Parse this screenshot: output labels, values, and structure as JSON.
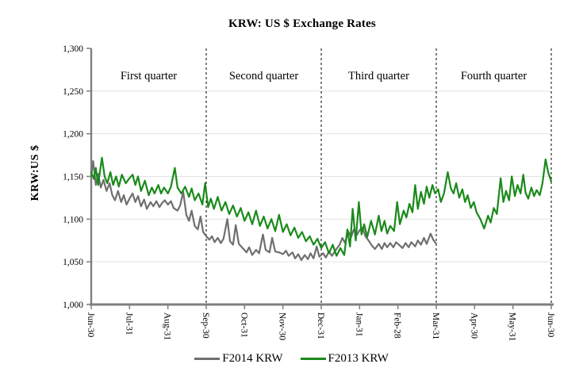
{
  "title": "KRW: US $ Exchange Rates",
  "y_axis_title": "KRW:US $",
  "legend": {
    "items": [
      {
        "label": "F2014 KRW",
        "color": "#6f6f6f"
      },
      {
        "label": "F2013 KRW",
        "color": "#1a8a1a"
      }
    ]
  },
  "colors": {
    "f2014_line": "#6f6f6f",
    "f2013_line": "#1a8a1a",
    "gridline": "#e2e2e2",
    "axis": "#7f7f7f",
    "separator": "#000000",
    "text": "#000000",
    "background": "#ffffff"
  },
  "chart_data": {
    "type": "line",
    "title": "KRW: US $ Exchange Rates",
    "ylabel": "KRW:US $",
    "xlabel": "",
    "ylim": [
      1000,
      1300
    ],
    "y_ticks": [
      1000,
      1050,
      1100,
      1150,
      1200,
      1250,
      1300
    ],
    "y_tick_labels": [
      "1,000",
      "1,050",
      "1,100",
      "1,150",
      "1,200",
      "1,250",
      "1,300"
    ],
    "y_gridlines": [
      1050,
      1100,
      1150,
      1200,
      1250
    ],
    "x_unit": "months after Jun-30 (fiscal year)",
    "x_range_months": [
      0,
      12
    ],
    "x_ticks_months": [
      0,
      1,
      2,
      3,
      4,
      5,
      6,
      7,
      8,
      9,
      10,
      11,
      12
    ],
    "x_tick_labels": [
      "Jun-30",
      "Jul-31",
      "Aug-31",
      "Sep-30",
      "Oct-31",
      "Nov-30",
      "Dec-31",
      "Jan-31",
      "Feb-28",
      "Mar-31",
      "Apr-30",
      "May-31",
      "Jun-30"
    ],
    "quarter_separators_months": [
      3,
      6,
      9,
      12
    ],
    "quarter_labels": [
      {
        "label": "First quarter",
        "center_month": 1.5
      },
      {
        "label": "Second quarter",
        "center_month": 4.5
      },
      {
        "label": "Third quarter",
        "center_month": 7.5
      },
      {
        "label": "Fourth quarter",
        "center_month": 10.5
      }
    ],
    "grid": "horizontal-light",
    "legend_position": "bottom",
    "series": [
      {
        "name": "F2014 KRW",
        "color": "#6f6f6f",
        "points": [
          [
            0,
            1150
          ],
          [
            0.05,
            1168
          ],
          [
            0.12,
            1140
          ],
          [
            0.18,
            1153
          ],
          [
            0.25,
            1137
          ],
          [
            0.32,
            1146
          ],
          [
            0.4,
            1133
          ],
          [
            0.48,
            1142
          ],
          [
            0.55,
            1128
          ],
          [
            0.62,
            1122
          ],
          [
            0.7,
            1133
          ],
          [
            0.78,
            1120
          ],
          [
            0.85,
            1128
          ],
          [
            0.92,
            1117
          ],
          [
            1.0,
            1124
          ],
          [
            1.08,
            1130
          ],
          [
            1.15,
            1120
          ],
          [
            1.22,
            1127
          ],
          [
            1.3,
            1115
          ],
          [
            1.38,
            1123
          ],
          [
            1.45,
            1112
          ],
          [
            1.55,
            1120
          ],
          [
            1.62,
            1115
          ],
          [
            1.7,
            1121
          ],
          [
            1.78,
            1114
          ],
          [
            1.85,
            1119
          ],
          [
            1.92,
            1122
          ],
          [
            2.0,
            1117
          ],
          [
            2.08,
            1121
          ],
          [
            2.15,
            1113
          ],
          [
            2.25,
            1110
          ],
          [
            2.32,
            1116
          ],
          [
            2.4,
            1132
          ],
          [
            2.48,
            1105
          ],
          [
            2.55,
            1098
          ],
          [
            2.62,
            1110
          ],
          [
            2.7,
            1092
          ],
          [
            2.78,
            1088
          ],
          [
            2.85,
            1103
          ],
          [
            2.92,
            1085
          ],
          [
            3.0,
            1080
          ],
          [
            3.08,
            1076
          ],
          [
            3.15,
            1080
          ],
          [
            3.22,
            1073
          ],
          [
            3.3,
            1078
          ],
          [
            3.38,
            1072
          ],
          [
            3.45,
            1077
          ],
          [
            3.55,
            1100
          ],
          [
            3.62,
            1074
          ],
          [
            3.7,
            1070
          ],
          [
            3.77,
            1093
          ],
          [
            3.85,
            1071
          ],
          [
            3.95,
            1066
          ],
          [
            4.05,
            1061
          ],
          [
            4.12,
            1067
          ],
          [
            4.2,
            1058
          ],
          [
            4.3,
            1064
          ],
          [
            4.38,
            1060
          ],
          [
            4.48,
            1082
          ],
          [
            4.55,
            1064
          ],
          [
            4.65,
            1061
          ],
          [
            4.72,
            1078
          ],
          [
            4.8,
            1062
          ],
          [
            4.9,
            1061
          ],
          [
            5.0,
            1059
          ],
          [
            5.08,
            1063
          ],
          [
            5.15,
            1057
          ],
          [
            5.25,
            1061
          ],
          [
            5.32,
            1054
          ],
          [
            5.4,
            1059
          ],
          [
            5.48,
            1052
          ],
          [
            5.57,
            1058
          ],
          [
            5.65,
            1053
          ],
          [
            5.72,
            1060
          ],
          [
            5.8,
            1054
          ],
          [
            5.88,
            1068
          ],
          [
            5.95,
            1056
          ],
          [
            6.05,
            1060
          ],
          [
            6.12,
            1055
          ],
          [
            6.2,
            1062
          ],
          [
            6.28,
            1057
          ],
          [
            6.38,
            1064
          ],
          [
            6.48,
            1070
          ],
          [
            6.55,
            1078
          ],
          [
            6.62,
            1072
          ],
          [
            6.7,
            1086
          ],
          [
            6.78,
            1079
          ],
          [
            6.85,
            1088
          ],
          [
            6.92,
            1081
          ],
          [
            7.0,
            1087
          ],
          [
            7.08,
            1090
          ],
          [
            7.15,
            1080
          ],
          [
            7.25,
            1074
          ],
          [
            7.32,
            1069
          ],
          [
            7.4,
            1065
          ],
          [
            7.5,
            1071
          ],
          [
            7.58,
            1065
          ],
          [
            7.65,
            1072
          ],
          [
            7.72,
            1067
          ],
          [
            7.8,
            1072
          ],
          [
            7.88,
            1067
          ],
          [
            7.95,
            1073
          ],
          [
            8.05,
            1069
          ],
          [
            8.12,
            1066
          ],
          [
            8.2,
            1072
          ],
          [
            8.28,
            1067
          ],
          [
            8.35,
            1073
          ],
          [
            8.45,
            1068
          ],
          [
            8.52,
            1075
          ],
          [
            8.6,
            1070
          ],
          [
            8.68,
            1078
          ],
          [
            8.75,
            1071
          ],
          [
            8.85,
            1083
          ],
          [
            8.92,
            1076
          ],
          [
            9.0,
            1071
          ]
        ]
      },
      {
        "name": "F2013 KRW",
        "color": "#1a8a1a",
        "points": [
          [
            0,
            1155
          ],
          [
            0.07,
            1147
          ],
          [
            0.12,
            1160
          ],
          [
            0.18,
            1140
          ],
          [
            0.28,
            1172
          ],
          [
            0.35,
            1150
          ],
          [
            0.42,
            1142
          ],
          [
            0.5,
            1155
          ],
          [
            0.57,
            1140
          ],
          [
            0.65,
            1150
          ],
          [
            0.72,
            1138
          ],
          [
            0.8,
            1152
          ],
          [
            0.9,
            1142
          ],
          [
            1.0,
            1148
          ],
          [
            1.08,
            1152
          ],
          [
            1.15,
            1140
          ],
          [
            1.22,
            1150
          ],
          [
            1.3,
            1133
          ],
          [
            1.4,
            1145
          ],
          [
            1.5,
            1128
          ],
          [
            1.58,
            1137
          ],
          [
            1.65,
            1130
          ],
          [
            1.75,
            1140
          ],
          [
            1.82,
            1130
          ],
          [
            1.9,
            1137
          ],
          [
            2.0,
            1130
          ],
          [
            2.08,
            1138
          ],
          [
            2.18,
            1160
          ],
          [
            2.25,
            1137
          ],
          [
            2.35,
            1130
          ],
          [
            2.45,
            1138
          ],
          [
            2.55,
            1126
          ],
          [
            2.62,
            1136
          ],
          [
            2.7,
            1122
          ],
          [
            2.8,
            1130
          ],
          [
            2.9,
            1117
          ],
          [
            2.97,
            1142
          ],
          [
            3.05,
            1114
          ],
          [
            3.12,
            1124
          ],
          [
            3.2,
            1112
          ],
          [
            3.3,
            1126
          ],
          [
            3.4,
            1110
          ],
          [
            3.5,
            1120
          ],
          [
            3.6,
            1106
          ],
          [
            3.7,
            1116
          ],
          [
            3.8,
            1103
          ],
          [
            3.9,
            1113
          ],
          [
            4.0,
            1098
          ],
          [
            4.1,
            1108
          ],
          [
            4.2,
            1094
          ],
          [
            4.3,
            1110
          ],
          [
            4.4,
            1092
          ],
          [
            4.5,
            1103
          ],
          [
            4.6,
            1089
          ],
          [
            4.7,
            1100
          ],
          [
            4.8,
            1086
          ],
          [
            4.9,
            1105
          ],
          [
            5.0,
            1085
          ],
          [
            5.1,
            1094
          ],
          [
            5.2,
            1081
          ],
          [
            5.3,
            1090
          ],
          [
            5.4,
            1078
          ],
          [
            5.5,
            1085
          ],
          [
            5.6,
            1074
          ],
          [
            5.7,
            1080
          ],
          [
            5.8,
            1070
          ],
          [
            5.9,
            1077
          ],
          [
            6.0,
            1066
          ],
          [
            6.1,
            1073
          ],
          [
            6.2,
            1060
          ],
          [
            6.3,
            1070
          ],
          [
            6.4,
            1057
          ],
          [
            6.5,
            1066
          ],
          [
            6.6,
            1058
          ],
          [
            6.68,
            1088
          ],
          [
            6.75,
            1068
          ],
          [
            6.82,
            1112
          ],
          [
            6.9,
            1075
          ],
          [
            6.98,
            1120
          ],
          [
            7.05,
            1082
          ],
          [
            7.12,
            1094
          ],
          [
            7.2,
            1079
          ],
          [
            7.3,
            1098
          ],
          [
            7.4,
            1082
          ],
          [
            7.5,
            1104
          ],
          [
            7.57,
            1086
          ],
          [
            7.65,
            1098
          ],
          [
            7.72,
            1083
          ],
          [
            7.8,
            1092
          ],
          [
            7.9,
            1086
          ],
          [
            7.98,
            1120
          ],
          [
            8.05,
            1094
          ],
          [
            8.15,
            1110
          ],
          [
            8.22,
            1102
          ],
          [
            8.3,
            1118
          ],
          [
            8.38,
            1108
          ],
          [
            8.45,
            1140
          ],
          [
            8.52,
            1112
          ],
          [
            8.6,
            1132
          ],
          [
            8.68,
            1118
          ],
          [
            8.75,
            1138
          ],
          [
            8.82,
            1125
          ],
          [
            8.9,
            1140
          ],
          [
            8.97,
            1130
          ],
          [
            9.05,
            1135
          ],
          [
            9.12,
            1120
          ],
          [
            9.2,
            1130
          ],
          [
            9.3,
            1155
          ],
          [
            9.38,
            1136
          ],
          [
            9.45,
            1130
          ],
          [
            9.52,
            1142
          ],
          [
            9.6,
            1125
          ],
          [
            9.68,
            1135
          ],
          [
            9.75,
            1120
          ],
          [
            9.82,
            1128
          ],
          [
            9.9,
            1113
          ],
          [
            9.98,
            1120
          ],
          [
            10.05,
            1108
          ],
          [
            10.15,
            1100
          ],
          [
            10.25,
            1089
          ],
          [
            10.35,
            1104
          ],
          [
            10.42,
            1096
          ],
          [
            10.5,
            1113
          ],
          [
            10.58,
            1106
          ],
          [
            10.68,
            1148
          ],
          [
            10.75,
            1120
          ],
          [
            10.82,
            1133
          ],
          [
            10.9,
            1122
          ],
          [
            10.97,
            1150
          ],
          [
            11.05,
            1127
          ],
          [
            11.12,
            1140
          ],
          [
            11.2,
            1130
          ],
          [
            11.27,
            1152
          ],
          [
            11.33,
            1131
          ],
          [
            11.4,
            1124
          ],
          [
            11.48,
            1137
          ],
          [
            11.55,
            1127
          ],
          [
            11.62,
            1134
          ],
          [
            11.7,
            1128
          ],
          [
            11.77,
            1142
          ],
          [
            11.85,
            1170
          ],
          [
            11.92,
            1155
          ],
          [
            12,
            1144
          ]
        ]
      }
    ]
  }
}
